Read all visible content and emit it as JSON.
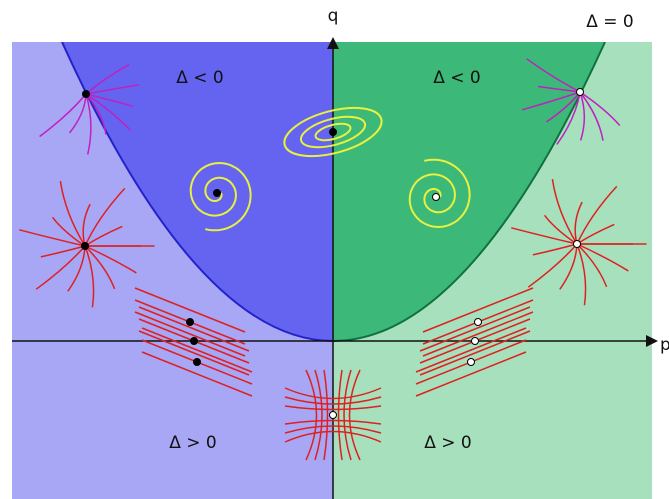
{
  "axes": {
    "vertical": "q",
    "horizontal": "p"
  },
  "curve_label": "Δ = 0",
  "regions": {
    "upper_left": "Δ < 0",
    "upper_right": "Δ < 0",
    "lower_left": "Δ > 0",
    "lower_right": "Δ > 0"
  }
}
